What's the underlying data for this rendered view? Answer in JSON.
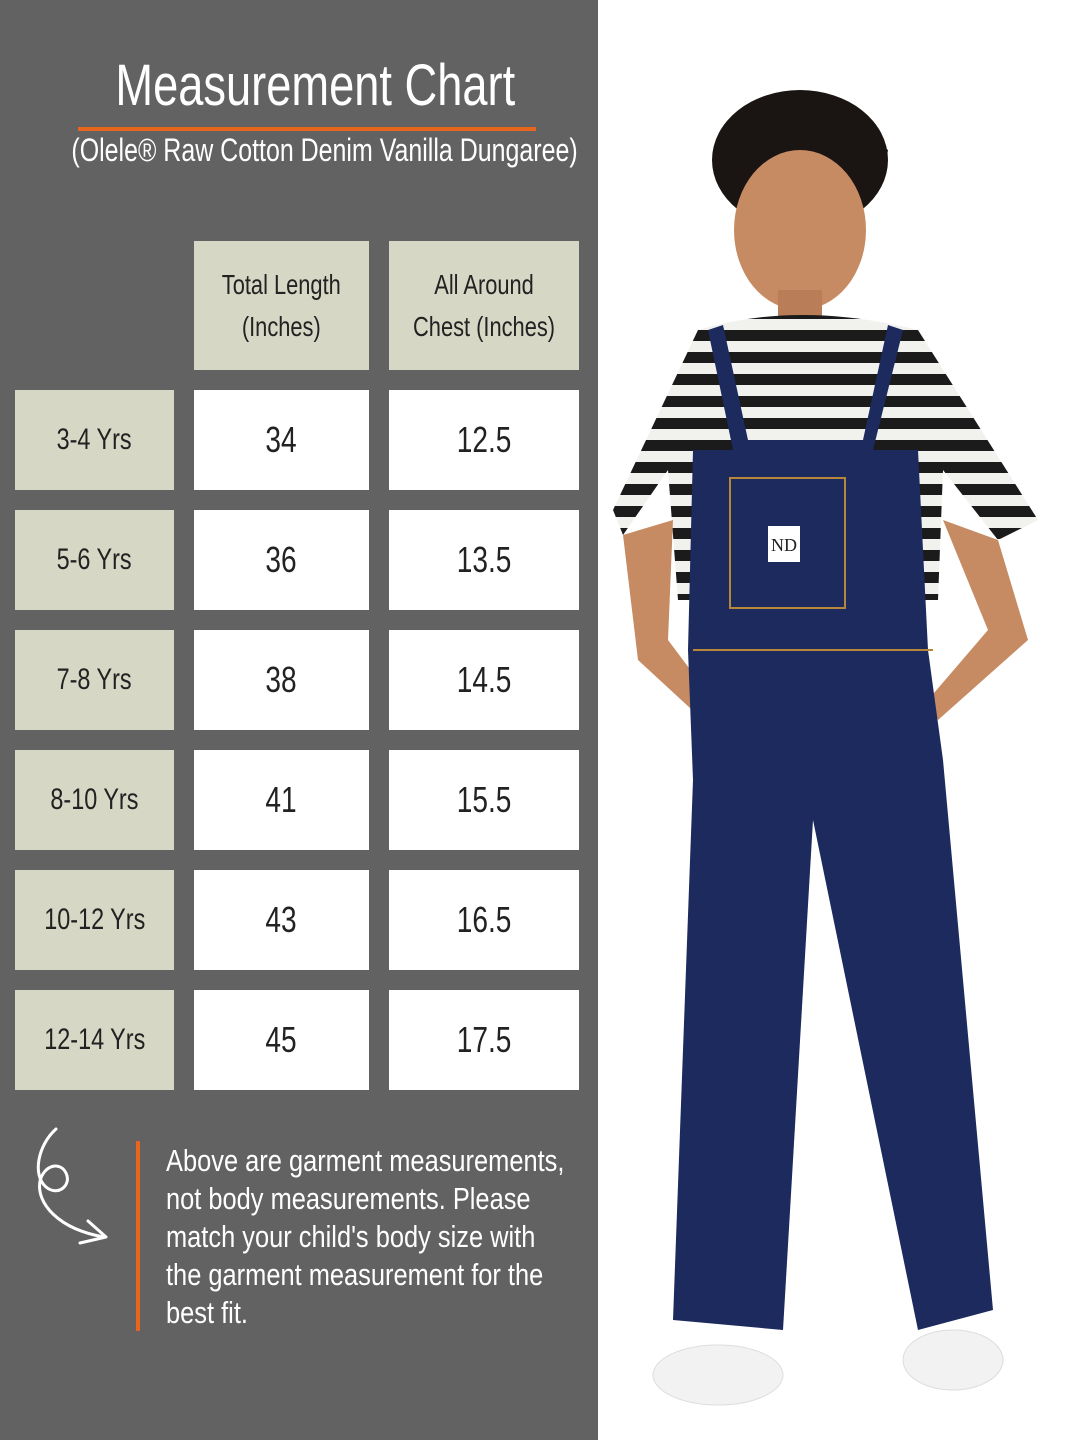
{
  "header": {
    "title": "Measurement Chart",
    "subtitle": "(Olele® Raw Cotton Denim Vanilla Dungaree)"
  },
  "table": {
    "columns": [
      {
        "line1": "Total Length",
        "line2": "(Inches)"
      },
      {
        "line1": "All Around",
        "line2": "Chest (Inches)"
      }
    ],
    "rows": [
      {
        "size": "3-4 Yrs",
        "length": "34",
        "chest": "12.5"
      },
      {
        "size": "5-6 Yrs",
        "length": "36",
        "chest": "13.5"
      },
      {
        "size": "7-8 Yrs",
        "length": "38",
        "chest": "14.5"
      },
      {
        "size": "8-10 Yrs",
        "length": "41",
        "chest": "15.5"
      },
      {
        "size": "10-12 Yrs",
        "length": "43",
        "chest": "16.5"
      },
      {
        "size": "12-14 Yrs",
        "length": "45",
        "chest": "17.5"
      }
    ]
  },
  "note": {
    "lines": [
      "Above are garment measurements,",
      "not body measurements. Please",
      "match your child's body size with",
      "the garment measurement for the",
      "best fit."
    ],
    "icon": "curly-arrow-icon"
  },
  "photo": {
    "pocket_label": "ND"
  },
  "colors": {
    "panel": "#626262",
    "accent": "#e8651e",
    "header_cell": "#d7d7c6",
    "denim": "#1c2a5e"
  }
}
